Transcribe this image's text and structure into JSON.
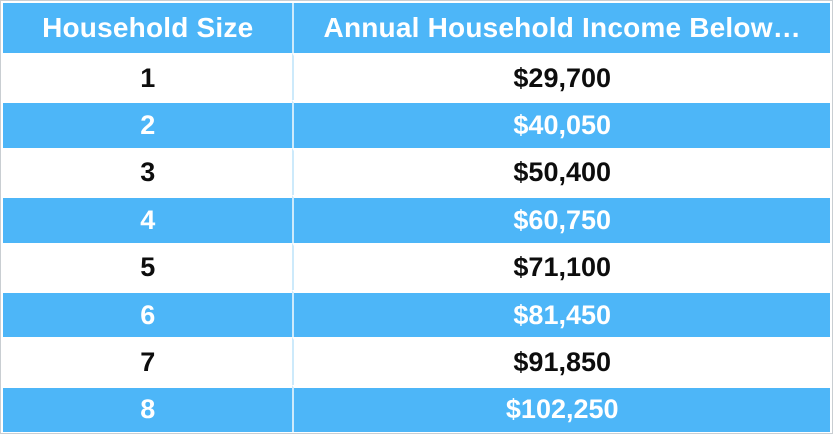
{
  "chart_data": {
    "type": "table",
    "columns": [
      "Household Size",
      "Annual Household Income Below…"
    ],
    "rows": [
      [
        "1",
        "$29,700"
      ],
      [
        "2",
        "$40,050"
      ],
      [
        "3",
        "$50,400"
      ],
      [
        "4",
        "$60,750"
      ],
      [
        "5",
        "$71,100"
      ],
      [
        "6",
        "$81,450"
      ],
      [
        "7",
        "$91,850"
      ],
      [
        "8",
        "$102,250"
      ]
    ],
    "layout": {
      "header_background": "#4db6f8",
      "alternating_row_colors": [
        "#ffffff",
        "#4db6f8"
      ],
      "grid": "light-blue column divider, white row gaps",
      "legend": "none"
    }
  },
  "colors": {
    "row_blue": "#4db6f8",
    "divider_light_blue": "#cdeafb",
    "text_on_blue": "#ffffff",
    "text_on_white": "#0d0d0d",
    "frame_border": "#c9ced2",
    "row_gap_white": "#ffffff"
  }
}
